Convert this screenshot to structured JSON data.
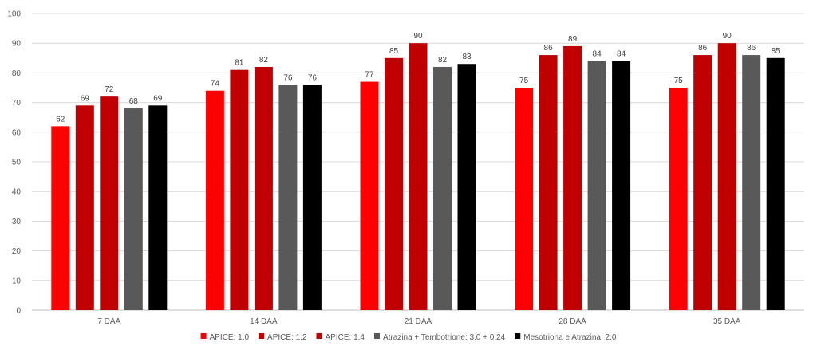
{
  "chart_data": {
    "type": "bar",
    "categories": [
      "7 DAA",
      "14 DAA",
      "21 DAA",
      "28 DAA",
      "35 DAA"
    ],
    "series": [
      {
        "name": "APICE: 1,0",
        "color": "#ff0000",
        "values": [
          62,
          74,
          77,
          75,
          75
        ]
      },
      {
        "name": "APICE: 1,2",
        "color": "#c00000",
        "values": [
          69,
          81,
          85,
          86,
          86
        ]
      },
      {
        "name": "APICE: 1,4",
        "color": "#c00000",
        "values": [
          72,
          82,
          90,
          89,
          90
        ]
      },
      {
        "name": "Atrazina + Tembotrione: 3,0 + 0,24",
        "color": "#595959",
        "values": [
          68,
          76,
          82,
          84,
          86
        ]
      },
      {
        "name": "Mesotriona e Atrazina: 2,0",
        "color": "#000000",
        "values": [
          69,
          76,
          83,
          84,
          85
        ]
      }
    ],
    "ylim": [
      0,
      100
    ],
    "yticks": [
      0,
      10,
      20,
      30,
      40,
      50,
      60,
      70,
      80,
      90,
      100
    ],
    "grid": true,
    "legend": "bottom",
    "data_labels": true
  }
}
